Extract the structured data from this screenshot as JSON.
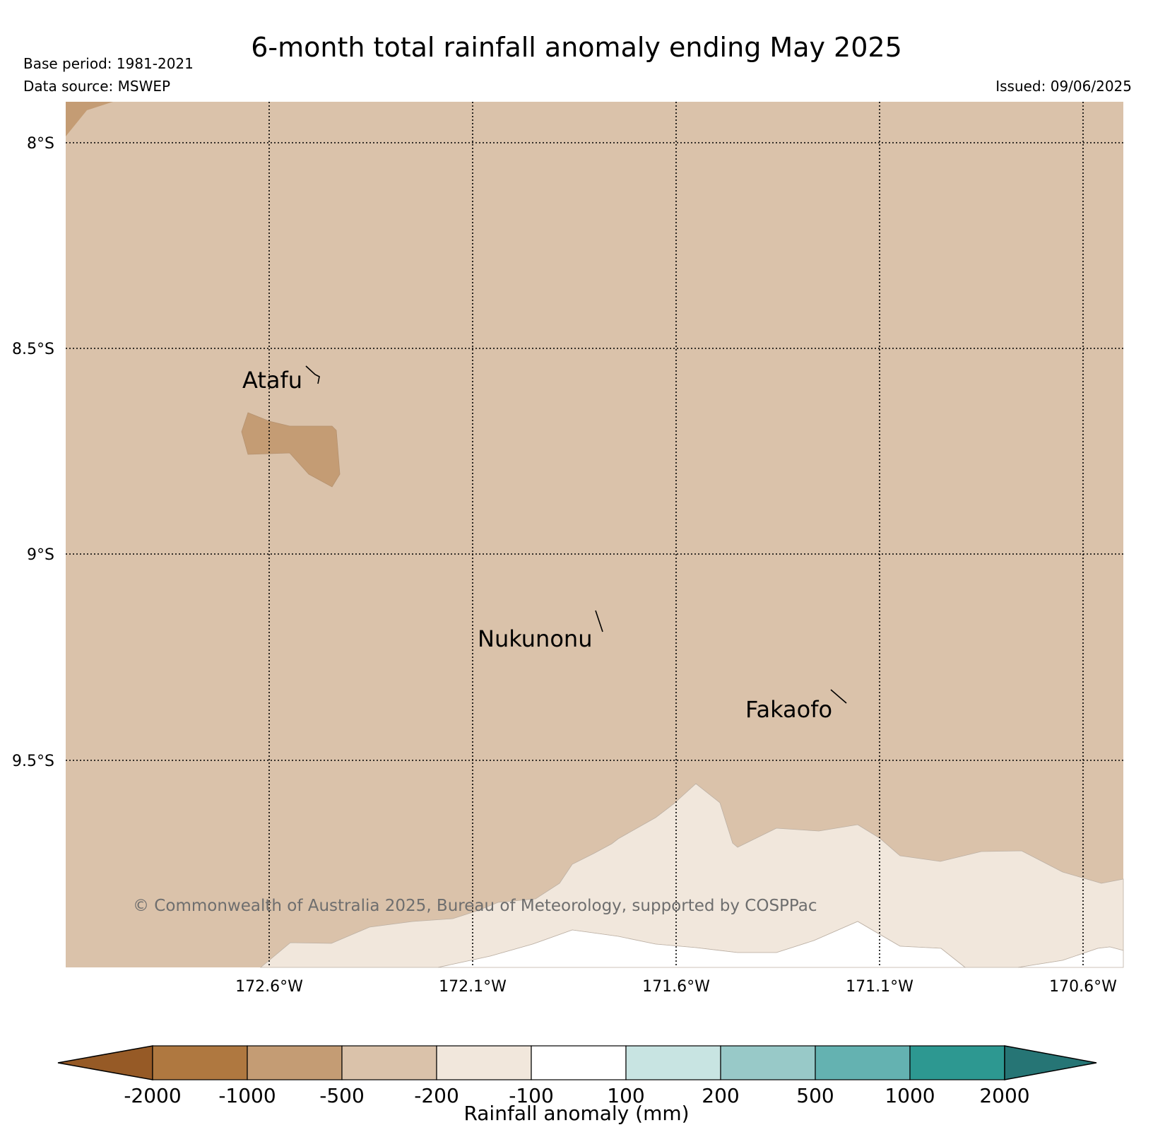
{
  "header": {
    "title": "6-month total rainfall anomaly ending May 2025",
    "base_period": "Base period: 1981-2021",
    "data_source": "Data source: MSWEP",
    "issued": "Issued: 09/06/2025"
  },
  "map": {
    "lat_labels": [
      "8°S",
      "8.5°S",
      "9°S",
      "9.5°S"
    ],
    "lon_labels": [
      "172.6°W",
      "172.1°W",
      "171.6°W",
      "171.1°W",
      "170.6°W"
    ],
    "places": [
      {
        "name": "Atafu"
      },
      {
        "name": "Nukunonu"
      },
      {
        "name": "Fakaofo"
      }
    ],
    "credit": "© Commonwealth of Australia 2025, Bureau of Meteorology, supported by COSPPac",
    "colors": {
      "lt_-1000_-500": "#c49c74",
      "lt_-500_-200": "#dac2aa",
      "lt_-200_-100": "#f1e7dc"
    }
  },
  "colorbar": {
    "label": "Rainfall anomaly (mm)",
    "ticks": [
      "-2000",
      "-1000",
      "-500",
      "-200",
      "-100",
      "100",
      "200",
      "500",
      "1000",
      "2000"
    ],
    "colors": [
      "#965a26",
      "#af7840",
      "#c49c74",
      "#dac2aa",
      "#f1e7dc",
      "#ffffff",
      "#c8e4e2",
      "#98c9c8",
      "#64b2b1",
      "#2d9891",
      "#267575"
    ]
  }
}
